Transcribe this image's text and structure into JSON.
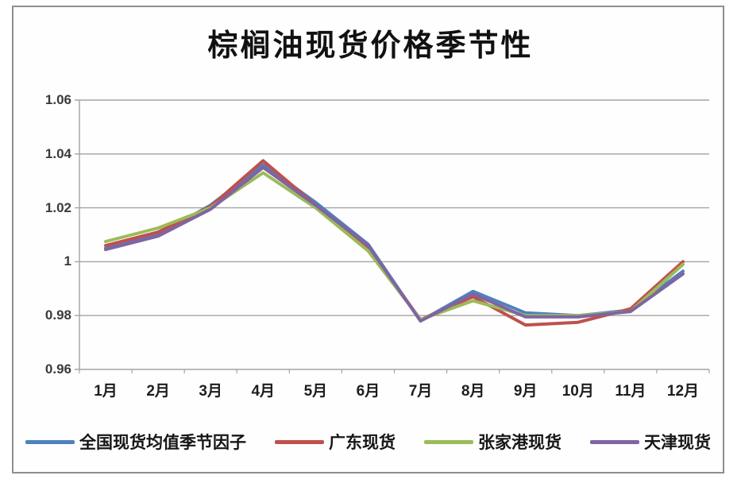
{
  "page": {
    "background_color": "#ffffff",
    "frame_border_color": "#8f8f8f"
  },
  "chart_data": {
    "type": "line",
    "title": "棕榈油现货价格季节性",
    "xlabel": "",
    "ylabel": "",
    "categories": [
      "1月",
      "2月",
      "3月",
      "4月",
      "5月",
      "6月",
      "7月",
      "8月",
      "9月",
      "10月",
      "11月",
      "12月"
    ],
    "series": [
      {
        "name": "全国现货均值季节因子",
        "color": "#4F81BD",
        "values": [
          1.005,
          1.01,
          1.021,
          1.036,
          1.022,
          1.0065,
          0.978,
          0.989,
          0.981,
          0.98,
          0.982,
          0.9965
        ]
      },
      {
        "name": "广东现货",
        "color": "#C0504D",
        "values": [
          1.006,
          1.011,
          1.0205,
          1.0375,
          1.021,
          1.005,
          0.9785,
          0.987,
          0.9765,
          0.9775,
          0.9825,
          1.0
        ]
      },
      {
        "name": "张家港现货",
        "color": "#9BBB59",
        "values": [
          1.0075,
          1.0125,
          1.02,
          1.033,
          1.02,
          1.004,
          0.9785,
          0.9855,
          0.98,
          0.98,
          0.9815,
          0.999
        ]
      },
      {
        "name": "天津现货",
        "color": "#8064A2",
        "values": [
          1.0045,
          1.0095,
          1.0195,
          1.035,
          1.021,
          1.006,
          0.978,
          0.988,
          0.9795,
          0.9795,
          0.9815,
          0.9955
        ]
      }
    ],
    "ylim": [
      0.96,
      1.06
    ],
    "yticks": [
      1.06,
      1.04,
      1.02,
      1.0,
      0.98,
      0.96
    ],
    "ytick_labels": [
      "1.06",
      "1.04",
      "1.02",
      "1",
      "0.98",
      "0.96"
    ],
    "grid": true,
    "gridline_color": "#a3a3a3",
    "legend_position": "bottom",
    "line_width": 4
  }
}
